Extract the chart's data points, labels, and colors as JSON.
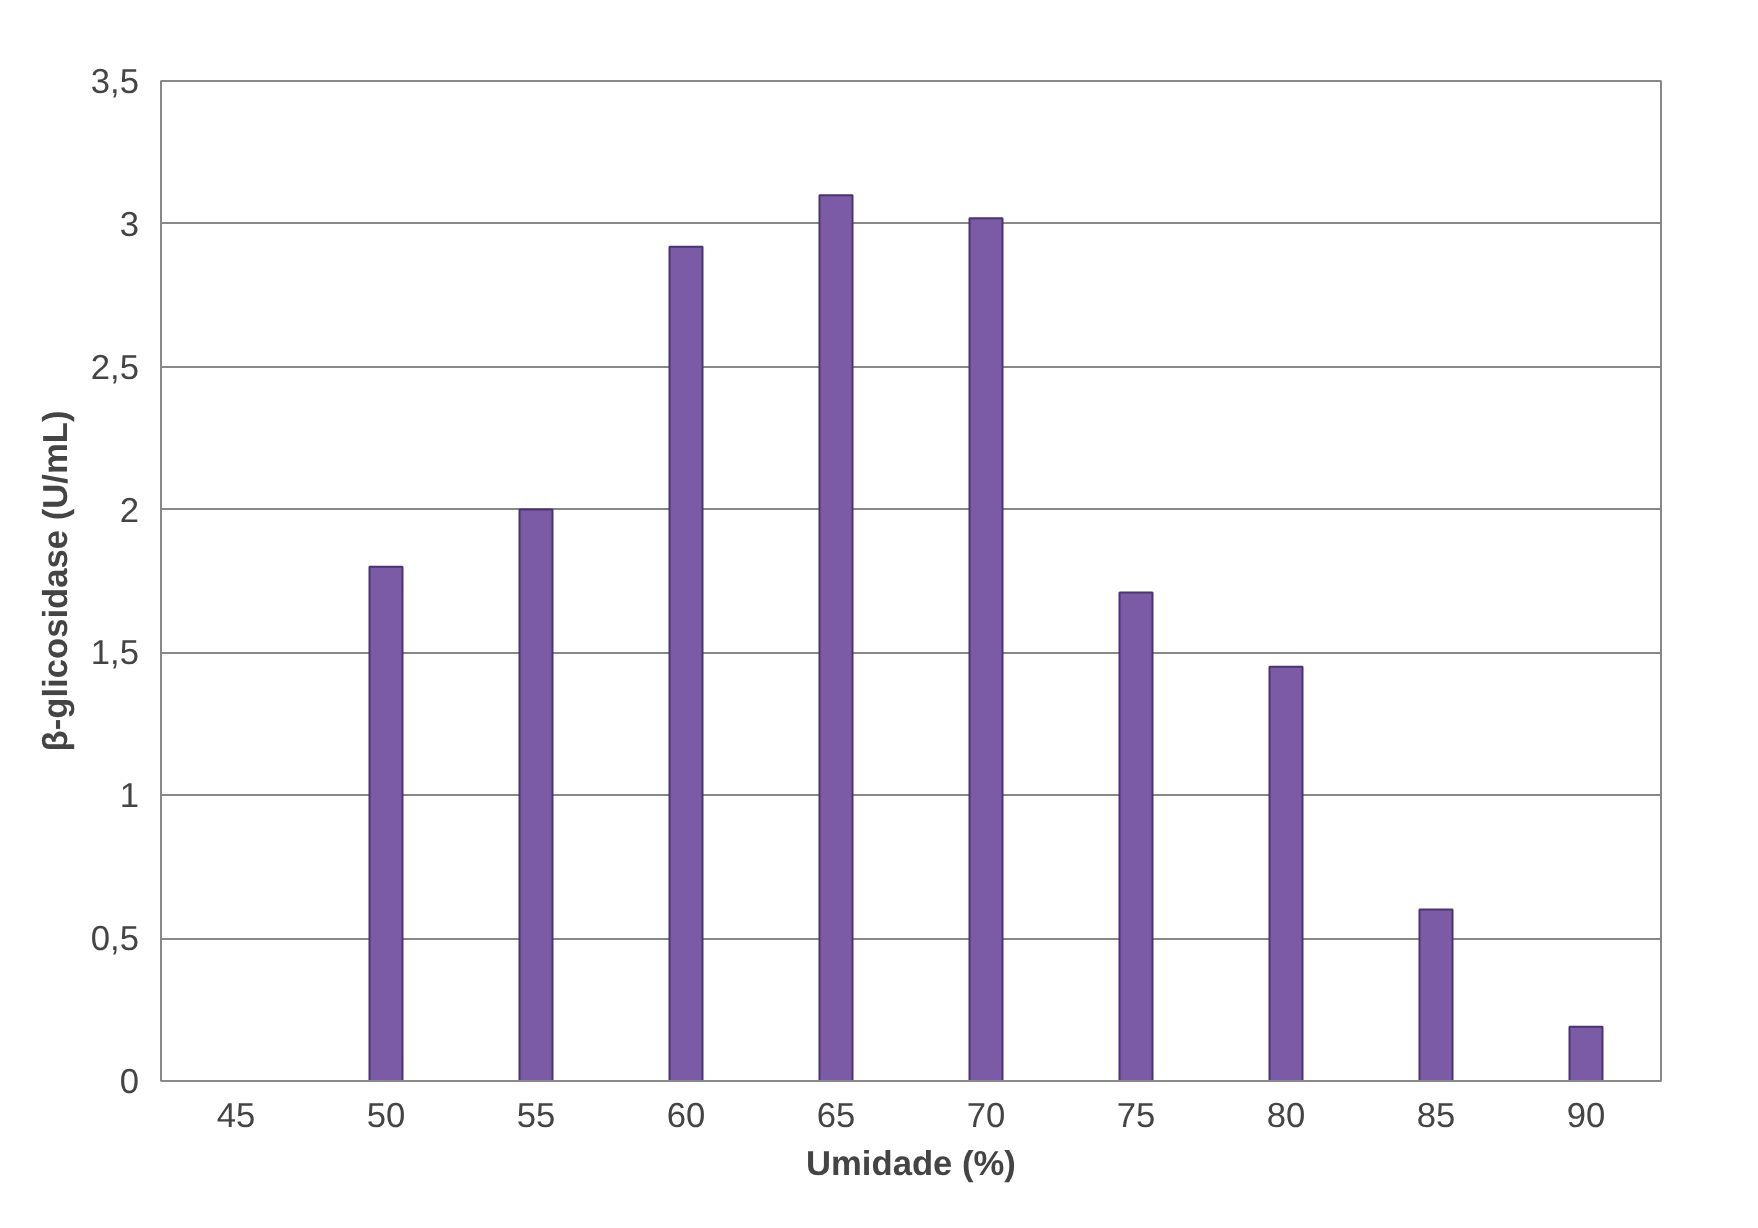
{
  "chart_data": {
    "type": "bar",
    "xlabel": "Umidade (%)",
    "ylabel": "β-glicosidase (U/mL)",
    "categories": [
      "45",
      "50",
      "55",
      "60",
      "65",
      "70",
      "75",
      "80",
      "85",
      "90"
    ],
    "values": [
      null,
      1.8,
      2.0,
      2.92,
      3.1,
      3.02,
      1.71,
      1.45,
      0.6,
      0.19
    ],
    "color": "#7b5aa6",
    "ylim": [
      0,
      3.5
    ],
    "yticks": [
      0,
      {
        "value": 0.5,
        "label": "0,5"
      },
      1,
      {
        "value": 1.5,
        "label": "1,5"
      },
      2,
      {
        "value": 2.5,
        "label": "2,5"
      },
      3,
      {
        "value": 3.5,
        "label": "3,5"
      }
    ],
    "grid": "y"
  }
}
